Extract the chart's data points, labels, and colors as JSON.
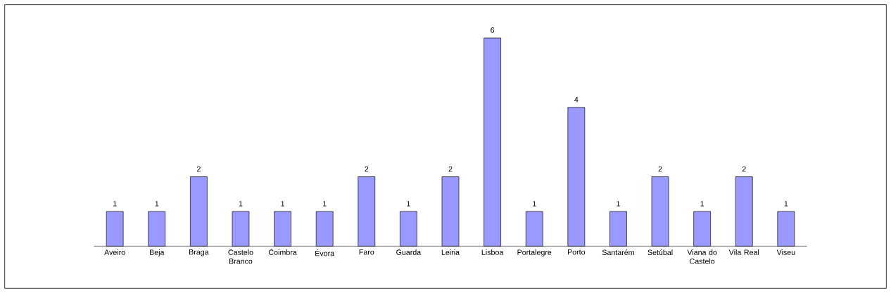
{
  "chart_data": {
    "type": "bar",
    "categories": [
      "Aveiro",
      "Beja",
      "Braga",
      "Castelo Branco",
      "Coimbra",
      "Évora",
      "Faro",
      "Guarda",
      "Leiria",
      "Lisboa",
      "Portalegre",
      "Porto",
      "Santarém",
      "Setúbal",
      "Viana do Castelo",
      "Vila Real",
      "Viseu"
    ],
    "values": [
      1,
      1,
      2,
      1,
      1,
      1,
      2,
      1,
      2,
      6,
      1,
      4,
      1,
      2,
      1,
      2,
      1
    ],
    "color": "#9999ff",
    "data_labels": true
  }
}
